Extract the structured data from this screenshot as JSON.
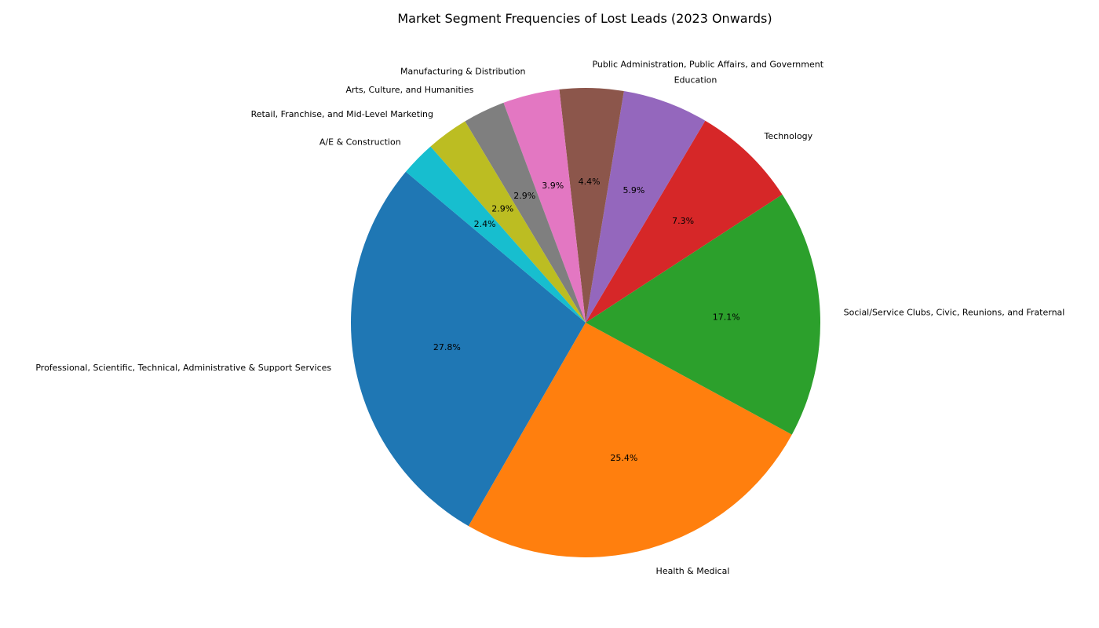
{
  "chart_data": {
    "type": "pie",
    "title": "Market Segment Frequencies of Lost Leads (2023 Onwards)",
    "start_angle_deg": 140,
    "direction": "counterclockwise",
    "slices": [
      {
        "label": "Professional, Scientific, Technical, Administrative & Support Services",
        "value": 27.8,
        "pct_label": "27.8%",
        "color": "#1f77b4"
      },
      {
        "label": "Health & Medical",
        "value": 25.4,
        "pct_label": "25.4%",
        "color": "#ff7f0e"
      },
      {
        "label": "Social/Service Clubs, Civic, Reunions, and Fraternal",
        "value": 17.1,
        "pct_label": "17.1%",
        "color": "#2ca02c"
      },
      {
        "label": "Technology",
        "value": 7.3,
        "pct_label": "7.3%",
        "color": "#d62728"
      },
      {
        "label": "Education",
        "value": 5.9,
        "pct_label": "5.9%",
        "color": "#9467bd"
      },
      {
        "label": "Public Administration, Public Affairs, and Government",
        "value": 4.4,
        "pct_label": "4.4%",
        "color": "#8c564b"
      },
      {
        "label": "Manufacturing & Distribution",
        "value": 3.9,
        "pct_label": "3.9%",
        "color": "#e377c2"
      },
      {
        "label": "Arts, Culture, and Humanities",
        "value": 2.9,
        "pct_label": "2.9%",
        "color": "#7f7f7f"
      },
      {
        "label": "Retail, Franchise, and Mid-Level Marketing",
        "value": 2.9,
        "pct_label": "2.9%",
        "color": "#bcbd22"
      },
      {
        "label": "A/E & Construction",
        "value": 2.4,
        "pct_label": "2.4%",
        "color": "#17becf"
      }
    ]
  }
}
